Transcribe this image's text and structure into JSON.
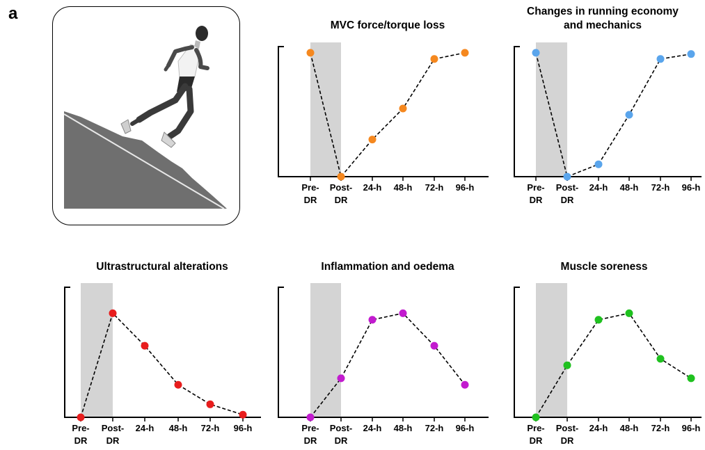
{
  "panel_label": "a",
  "colors": {
    "shade": "#d4d4d4",
    "orange": "#f5881f",
    "blue": "#5aa5ec",
    "red": "#e81d1d",
    "purple": "#c21bcf",
    "green": "#1fc11f"
  },
  "illustration": {
    "name": "downhill-runner",
    "description_icon": "runner-figure"
  },
  "chart_data": [
    {
      "type": "line",
      "title": [
        "MVC force/torque loss"
      ],
      "categories": [
        [
          "Pre-",
          "DR"
        ],
        [
          "Post-",
          "DR"
        ],
        [
          "24-h"
        ],
        [
          "48-h"
        ],
        [
          "72-h"
        ],
        [
          "96-h"
        ]
      ],
      "values": [
        1.0,
        0.0,
        0.3,
        0.55,
        0.95,
        1.0
      ],
      "ylim": [
        0,
        1.05
      ],
      "shaded_range": [
        0,
        1
      ],
      "color": "orange"
    },
    {
      "type": "line",
      "title": [
        "Changes in running economy",
        "and mechanics"
      ],
      "categories": [
        [
          "Pre-",
          "DR"
        ],
        [
          "Post-",
          "DR"
        ],
        [
          "24-h"
        ],
        [
          "48-h"
        ],
        [
          "72-h"
        ],
        [
          "96-h"
        ]
      ],
      "values": [
        1.0,
        0.0,
        0.1,
        0.5,
        0.95,
        0.99
      ],
      "ylim": [
        0,
        1.05
      ],
      "shaded_range": [
        0,
        1
      ],
      "color": "blue"
    },
    {
      "type": "line",
      "title": [
        "Ultrastructural alterations"
      ],
      "categories": [
        [
          "Pre-",
          "DR"
        ],
        [
          "Post-",
          "DR"
        ],
        [
          "24-h"
        ],
        [
          "48-h"
        ],
        [
          "72-h"
        ],
        [
          "96-h"
        ]
      ],
      "values": [
        0.0,
        0.8,
        0.55,
        0.25,
        0.1,
        0.02
      ],
      "ylim": [
        0,
        1.0
      ],
      "shaded_range": [
        0,
        1
      ],
      "color": "red"
    },
    {
      "type": "line",
      "title": [
        "Inflammation and oedema"
      ],
      "categories": [
        [
          "Pre-",
          "DR"
        ],
        [
          "Post-",
          "DR"
        ],
        [
          "24-h"
        ],
        [
          "48-h"
        ],
        [
          "72-h"
        ],
        [
          "96-h"
        ]
      ],
      "values": [
        0.0,
        0.3,
        0.75,
        0.8,
        0.55,
        0.25
      ],
      "ylim": [
        0,
        1.0
      ],
      "shaded_range": [
        0,
        1
      ],
      "color": "purple"
    },
    {
      "type": "line",
      "title": [
        "Muscle soreness"
      ],
      "categories": [
        [
          "Pre-",
          "DR"
        ],
        [
          "Post-",
          "DR"
        ],
        [
          "24-h"
        ],
        [
          "48-h"
        ],
        [
          "72-h"
        ],
        [
          "96-h"
        ]
      ],
      "values": [
        0.0,
        0.4,
        0.75,
        0.8,
        0.45,
        0.3
      ],
      "ylim": [
        0,
        1.0
      ],
      "shaded_range": [
        0,
        1
      ],
      "color": "green"
    }
  ]
}
